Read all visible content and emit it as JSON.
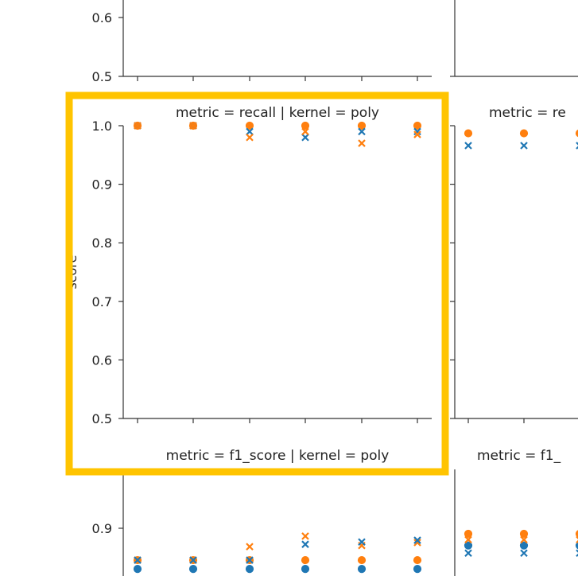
{
  "colors": {
    "series_a": "#1f77b4",
    "series_b": "#ff7f0e",
    "highlight": "#ffc400"
  },
  "chart_data": [
    {
      "type": "scatter",
      "panel": "top-left",
      "title": "",
      "ylim": [
        0.5,
        1.0
      ],
      "visible_y_ticks": [
        "0.6",
        "0.5"
      ],
      "x_ticks": 6,
      "series": []
    },
    {
      "type": "scatter",
      "panel": "middle-left",
      "title": "metric = recall | kernel = poly",
      "ylabel": "score",
      "ylim": [
        0.5,
        1.0
      ],
      "y_ticks": [
        "1.0",
        "0.9",
        "0.8",
        "0.7",
        "0.6",
        "0.5"
      ],
      "x_ticks": 6,
      "highlighted": true,
      "series": [
        {
          "marker": "circle",
          "color": "#ff7f0e",
          "values": [
            1.0,
            1.0,
            1.0,
            1.0,
            1.0,
            1.0
          ]
        },
        {
          "marker": "x",
          "color": "#1f77b4",
          "values": [
            1.0,
            1.0,
            0.99,
            0.98,
            0.99,
            0.99
          ]
        },
        {
          "marker": "x",
          "color": "#ff7f0e",
          "values": [
            1.0,
            1.0,
            0.98,
            0.99,
            0.97,
            0.985
          ]
        }
      ]
    },
    {
      "type": "scatter",
      "panel": "middle-right",
      "title": "metric = re",
      "ylim": [
        0.5,
        1.0
      ],
      "x_ticks": 3,
      "series": [
        {
          "marker": "circle",
          "color": "#ff7f0e",
          "values": [
            0.987,
            0.987,
            0.987
          ]
        },
        {
          "marker": "x",
          "color": "#1f77b4",
          "values": [
            0.966,
            0.966,
            0.966
          ]
        }
      ]
    },
    {
      "type": "scatter",
      "panel": "bottom-left",
      "title": "metric = f1_score | kernel = poly",
      "ylim": [
        0.5,
        1.0
      ],
      "y_ticks": [
        "0.9"
      ],
      "x_ticks": 6,
      "series": [
        {
          "marker": "circle",
          "color": "#1f77b4",
          "values": [
            0.83,
            0.83,
            0.83,
            0.83,
            0.83,
            0.83
          ]
        },
        {
          "marker": "circle",
          "color": "#ff7f0e",
          "values": [
            0.845,
            0.845,
            0.845,
            0.845,
            0.845,
            0.845
          ]
        },
        {
          "marker": "x",
          "color": "#ff7f0e",
          "values": [
            0.845,
            0.845,
            0.868,
            0.886,
            0.87,
            0.875
          ]
        },
        {
          "marker": "x",
          "color": "#1f77b4",
          "values": [
            0.845,
            0.845,
            0.845,
            0.872,
            0.876,
            0.879
          ]
        }
      ]
    },
    {
      "type": "scatter",
      "panel": "bottom-right",
      "title": "metric = f1_",
      "ylim": [
        0.5,
        1.0
      ],
      "x_ticks": 3,
      "series": [
        {
          "marker": "circle",
          "color": "#ff7f0e",
          "values": [
            0.89,
            0.89,
            0.89
          ]
        },
        {
          "marker": "circle",
          "color": "#1f77b4",
          "values": [
            0.87,
            0.87,
            0.87
          ]
        },
        {
          "marker": "x",
          "color": "#1f77b4",
          "values": [
            0.857,
            0.857,
            0.857
          ]
        },
        {
          "marker": "x",
          "color": "#ff7f0e",
          "values": [
            0.88,
            0.88,
            0.88
          ]
        }
      ]
    }
  ]
}
